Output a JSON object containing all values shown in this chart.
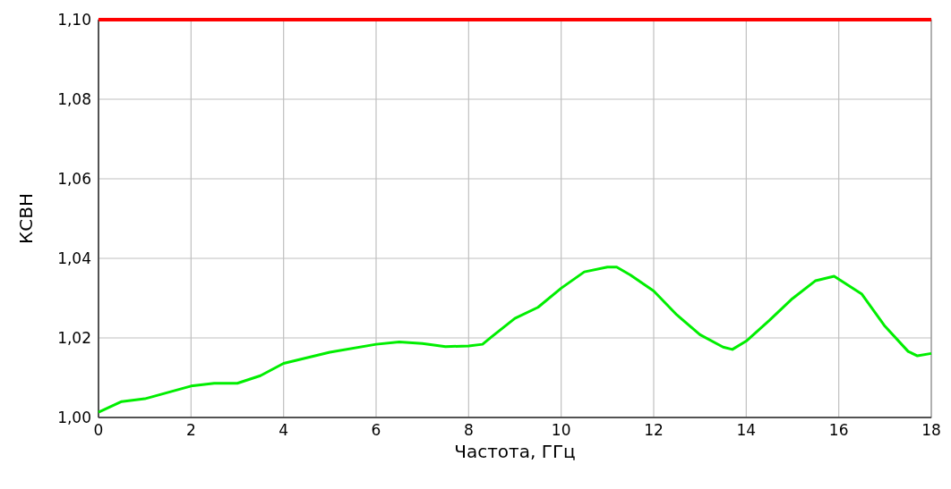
{
  "chart_data": {
    "type": "line",
    "xlabel": "Частота, ГГц",
    "ylabel": "КСВН",
    "xlim": [
      0,
      18
    ],
    "xticks": [
      0,
      2,
      4,
      6,
      8,
      10,
      12,
      14,
      16,
      18
    ],
    "ylim": [
      1.0,
      1.1
    ],
    "yticks": [
      {
        "value": 1.0,
        "label": "1,00"
      },
      {
        "value": 1.02,
        "label": "1,02"
      },
      {
        "value": 1.04,
        "label": "1,04"
      },
      {
        "value": 1.06,
        "label": "1,06"
      },
      {
        "value": 1.08,
        "label": "1,08"
      },
      {
        "value": 1.1,
        "label": "1,10"
      }
    ],
    "grid": true,
    "line_style": "solid",
    "marker": "none",
    "ref_lines": [
      {
        "axis": "y",
        "value": 1.1,
        "color": "#ff0000"
      }
    ],
    "series": [
      {
        "color": "#00ee00",
        "x": [
          0,
          0.5,
          1,
          2,
          2.5,
          3,
          3.5,
          4,
          5,
          6,
          6.5,
          7,
          7.5,
          8,
          8.3,
          8.5,
          9,
          9.5,
          10,
          10.5,
          11,
          11.2,
          11.5,
          12,
          12.5,
          13,
          13.5,
          13.7,
          14,
          14.5,
          15,
          15.5,
          15.9,
          16.5,
          17,
          17.5,
          17.7,
          18
        ],
        "values": [
          1.0013,
          1.004,
          1.0047,
          1.0079,
          1.0086,
          1.0086,
          1.0105,
          1.0136,
          1.0164,
          1.0184,
          1.019,
          1.0186,
          1.0178,
          1.018,
          1.0184,
          1.0203,
          1.0249,
          1.0277,
          1.0325,
          1.0366,
          1.0378,
          1.0378,
          1.0358,
          1.0318,
          1.0258,
          1.0208,
          1.0177,
          1.0171,
          1.0192,
          1.0244,
          1.0299,
          1.0344,
          1.0355,
          1.031,
          1.0229,
          1.0166,
          1.0155,
          1.0161
        ]
      }
    ]
  }
}
